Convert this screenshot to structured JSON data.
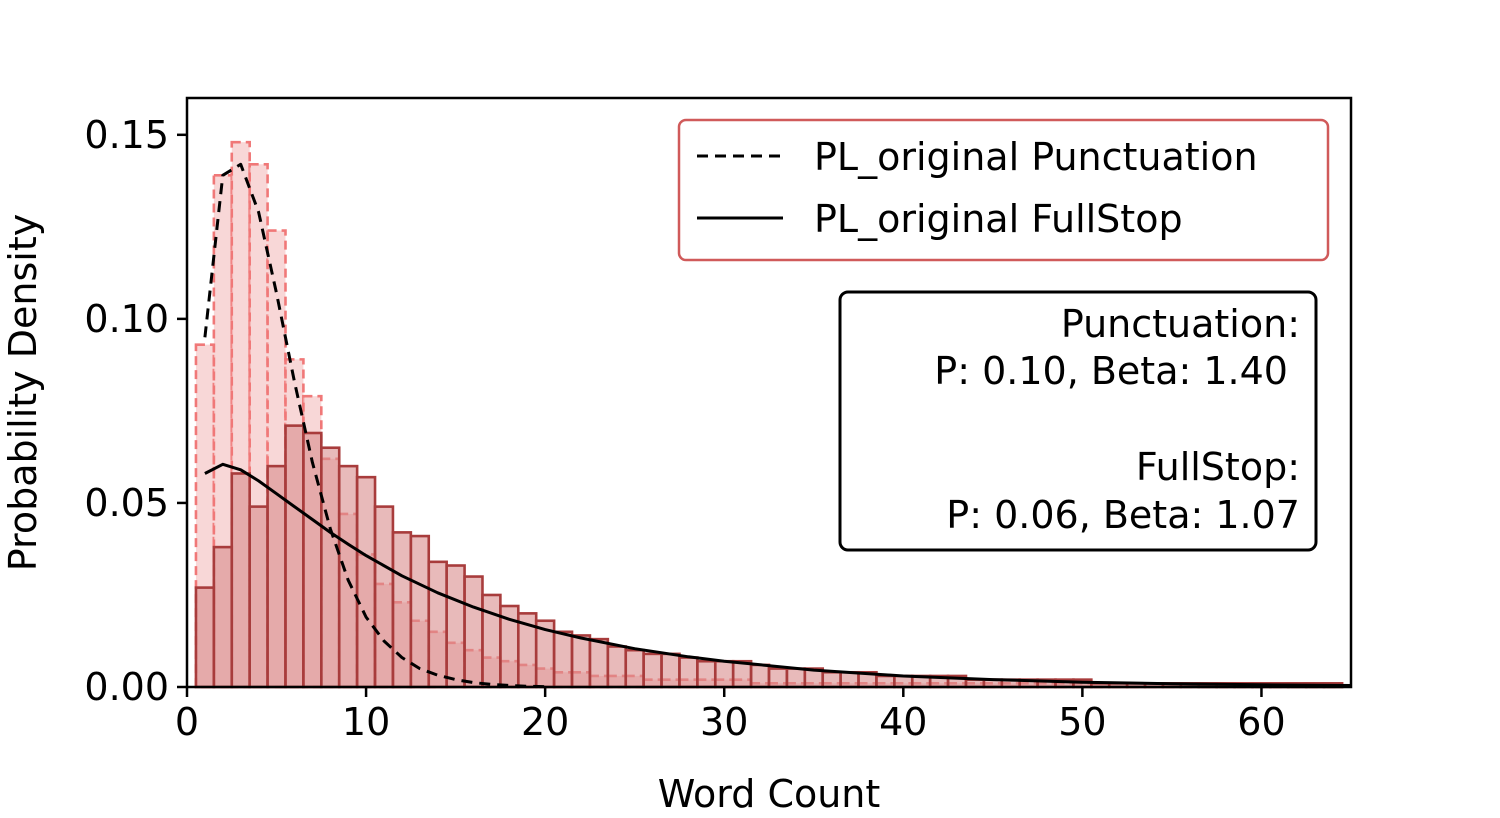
{
  "chart_data": {
    "type": "bar",
    "title": "",
    "xlabel": "Word Count",
    "ylabel": "Probability Density",
    "xlim": [
      0,
      65
    ],
    "ylim": [
      0,
      0.16
    ],
    "xticks": [
      0,
      10,
      20,
      30,
      40,
      50,
      60
    ],
    "xtick_labels": [
      "0",
      "10",
      "20",
      "30",
      "40",
      "50",
      "60"
    ],
    "yticks": [
      0,
      0.05,
      0.1,
      0.15
    ],
    "ytick_labels": [
      "0.00",
      "0.05",
      "0.10",
      "0.15"
    ],
    "grid": false,
    "bin_start": 0.5,
    "bin_width": 1,
    "histograms": [
      {
        "name": "Punctuation",
        "fill_color": "#f5c9c9",
        "edge_color": "#f07878",
        "edge_style": "dashed",
        "values": [
          0.093,
          0.139,
          0.148,
          0.142,
          0.124,
          0.089,
          0.079,
          0.062,
          0.047,
          0.036,
          0.028,
          0.023,
          0.018,
          0.015,
          0.012,
          0.01,
          0.008,
          0.007,
          0.006,
          0.005,
          0.004,
          0.004,
          0.003,
          0.003,
          0.003,
          0.002,
          0.002,
          0.002,
          0.002,
          0.002,
          0.002,
          0.001,
          0.001,
          0.001,
          0.001,
          0.001,
          0.001,
          0.001,
          0.001,
          0.001,
          0.001,
          0.001,
          0.001,
          0.001,
          0.001,
          0.001,
          0.001,
          0.001,
          0.001,
          0.001,
          0.001,
          0.001,
          0.001,
          0.001,
          0.001,
          0.001,
          0.001,
          0.001,
          0.001,
          0.001,
          0.001,
          0.001,
          0.001,
          0.001
        ]
      },
      {
        "name": "FullStop",
        "fill_color": "#d98c8c",
        "edge_color": "#a83c3c",
        "edge_style": "solid",
        "values": [
          0.027,
          0.038,
          0.058,
          0.049,
          0.06,
          0.071,
          0.069,
          0.065,
          0.06,
          0.057,
          0.049,
          0.042,
          0.041,
          0.034,
          0.033,
          0.03,
          0.025,
          0.022,
          0.02,
          0.018,
          0.015,
          0.014,
          0.013,
          0.011,
          0.01,
          0.009,
          0.009,
          0.008,
          0.007,
          0.007,
          0.007,
          0.006,
          0.005,
          0.005,
          0.005,
          0.004,
          0.004,
          0.004,
          0.003,
          0.003,
          0.003,
          0.003,
          0.003,
          0.002,
          0.002,
          0.002,
          0.002,
          0.002,
          0.002,
          0.002,
          0.001,
          0.001,
          0.001,
          0.001,
          0.001,
          0.001,
          0.001,
          0.001,
          0.001,
          0.001,
          0.001,
          0.001,
          0.001,
          0.001
        ]
      }
    ],
    "series": [
      {
        "name": "PL_original Punctuation",
        "style": "dashed",
        "color": "#000000",
        "x": [
          1,
          2,
          3,
          4,
          5,
          6,
          7,
          8,
          9,
          10,
          11,
          12,
          13,
          14,
          15,
          16,
          17,
          18,
          19,
          20
        ],
        "y": [
          0.095,
          0.139,
          0.142,
          0.129,
          0.107,
          0.083,
          0.061,
          0.043,
          0.029,
          0.019,
          0.0125,
          0.008,
          0.005,
          0.0032,
          0.002,
          0.0012,
          0.0007,
          0.0004,
          0.0002,
          0.0001
        ]
      },
      {
        "name": "PL_original FullStop",
        "style": "solid",
        "color": "#000000",
        "x": [
          1,
          2,
          3,
          4,
          5,
          6,
          7,
          8,
          9,
          10,
          12,
          14,
          16,
          18,
          20,
          22,
          25,
          28,
          30,
          35,
          40,
          45,
          50,
          55,
          60,
          65
        ],
        "y": [
          0.058,
          0.0605,
          0.059,
          0.056,
          0.0525,
          0.049,
          0.0455,
          0.042,
          0.0388,
          0.0357,
          0.0302,
          0.0256,
          0.0217,
          0.0184,
          0.0156,
          0.0133,
          0.0104,
          0.0082,
          0.007,
          0.0046,
          0.003,
          0.002,
          0.0013,
          0.0009,
          0.0006,
          0.0004
        ]
      }
    ],
    "legend": {
      "placement": "top-right",
      "border_color": "#d05a5a",
      "entries": [
        {
          "label": "PL_original Punctuation",
          "style": "dashed"
        },
        {
          "label": "PL_original FullStop",
          "style": "solid"
        }
      ]
    },
    "annotation": {
      "placement": "right",
      "border_color": "#000000",
      "lines": [
        "Punctuation:",
        "P: 0.10, Beta: 1.40",
        "",
        "FullStop:",
        "P: 0.06, Beta: 1.07"
      ]
    }
  }
}
